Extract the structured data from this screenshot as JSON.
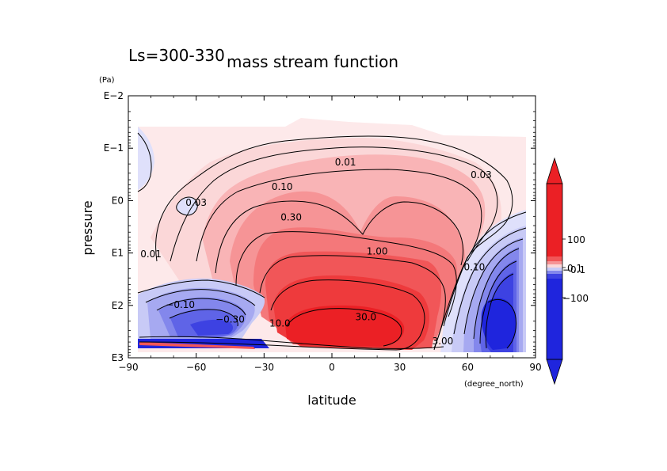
{
  "page": {
    "period_label": "Ls=300-330",
    "title": "mass stream function"
  },
  "colors": {
    "pos_very_light": "#fde9ea",
    "pos_light": "#fbd7d8",
    "pos_mid_light": "#f9b4b6",
    "pos_mid": "#f69496",
    "pos_mid_dark": "#f4787a",
    "pos_dark": "#f15658",
    "pos_strong": "#ee3a3c",
    "pos_max": "#eb2025",
    "neg_very_light": "#dfe0fb",
    "neg_light": "#c8caf6",
    "neg_mid_light": "#a6a9f1",
    "neg_mid": "#8387ec",
    "neg_mid_dark": "#5f64e7",
    "neg_dark": "#3d42e2",
    "neg_max": "#1f25dd",
    "contour_line": "#000000",
    "frame": "#000000"
  },
  "chart_data": {
    "type": "heatmap",
    "title": "mass stream function",
    "subtitle": "Ls=300-330",
    "xlabel": "latitude",
    "ylabel": "pressure",
    "x_unit": "(degree_north)",
    "y_unit": "(Pa)",
    "x_range": [
      -90,
      90
    ],
    "x_ticks": [
      -90,
      -60,
      -30,
      0,
      30,
      60,
      90
    ],
    "x_tick_labels": [
      "−90",
      "−60",
      "−30",
      "0",
      "30",
      "60",
      "90"
    ],
    "y_scale": "log",
    "y_range_log10": [
      -2,
      3
    ],
    "y_inverted": true,
    "y_ticks_log10": [
      -2,
      -1,
      0,
      1,
      2,
      3
    ],
    "y_tick_labels": [
      "E−2",
      "E−1",
      "E0",
      "E1",
      "E2",
      "E3"
    ],
    "contour_labels": [
      {
        "text": "0.01",
        "lat": 6,
        "logp": -0.73
      },
      {
        "text": "0.03",
        "lat": 66,
        "logp": -0.49
      },
      {
        "text": "0.03",
        "lat": -60,
        "logp": 0.04
      },
      {
        "text": "0.10",
        "lat": -22,
        "logp": -0.26
      },
      {
        "text": "0.30",
        "lat": -18,
        "logp": 0.32
      },
      {
        "text": "1.00",
        "lat": 20,
        "logp": 0.97
      },
      {
        "text": "0.01",
        "lat": -80,
        "logp": 1.02
      },
      {
        "text": "−0.10",
        "lat": -67,
        "logp": 1.99
      },
      {
        "text": "−0.30",
        "lat": -45,
        "logp": 2.27
      },
      {
        "text": "10.0",
        "lat": -23,
        "logp": 2.34
      },
      {
        "text": "30.0",
        "lat": 15,
        "logp": 2.22
      },
      {
        "text": "3.00",
        "lat": 49,
        "logp": 2.68
      },
      {
        "text": "0.10",
        "lat": 63,
        "logp": 1.27
      }
    ],
    "colorbar": {
      "labels": [
        {
          "text": "100",
          "value_level": "upper"
        },
        {
          "text": "0.1",
          "value_level": "zero_upper"
        },
        {
          "text": "−0.1",
          "value_level": "zero_lower"
        },
        {
          "text": "−100",
          "value_level": "lower"
        }
      ]
    }
  }
}
